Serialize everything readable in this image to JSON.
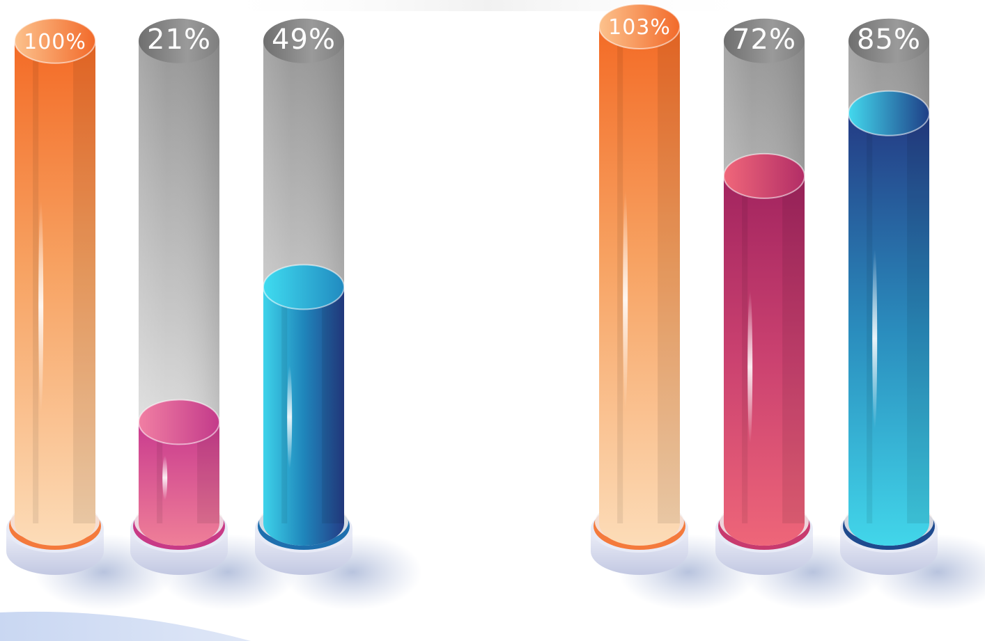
{
  "chart_data": [
    {
      "type": "bar",
      "style": "3d-cylinder",
      "grid": false,
      "legend": "none",
      "title": "",
      "values": [
        100,
        21,
        49
      ],
      "labels": [
        "100%",
        "21%",
        "49%"
      ],
      "colors": [
        "#f47a3c",
        "#c83a86",
        "#1e6fae"
      ],
      "ylim": [
        0,
        103
      ]
    },
    {
      "type": "bar",
      "style": "3d-cylinder",
      "grid": false,
      "legend": "none",
      "title": "",
      "values": [
        103,
        72,
        85
      ],
      "labels": [
        "103%",
        "72%",
        "85%"
      ],
      "colors": [
        "#f47a3c",
        "#c83a6e",
        "#1e4a8e"
      ],
      "ylim": [
        0,
        103
      ]
    }
  ]
}
